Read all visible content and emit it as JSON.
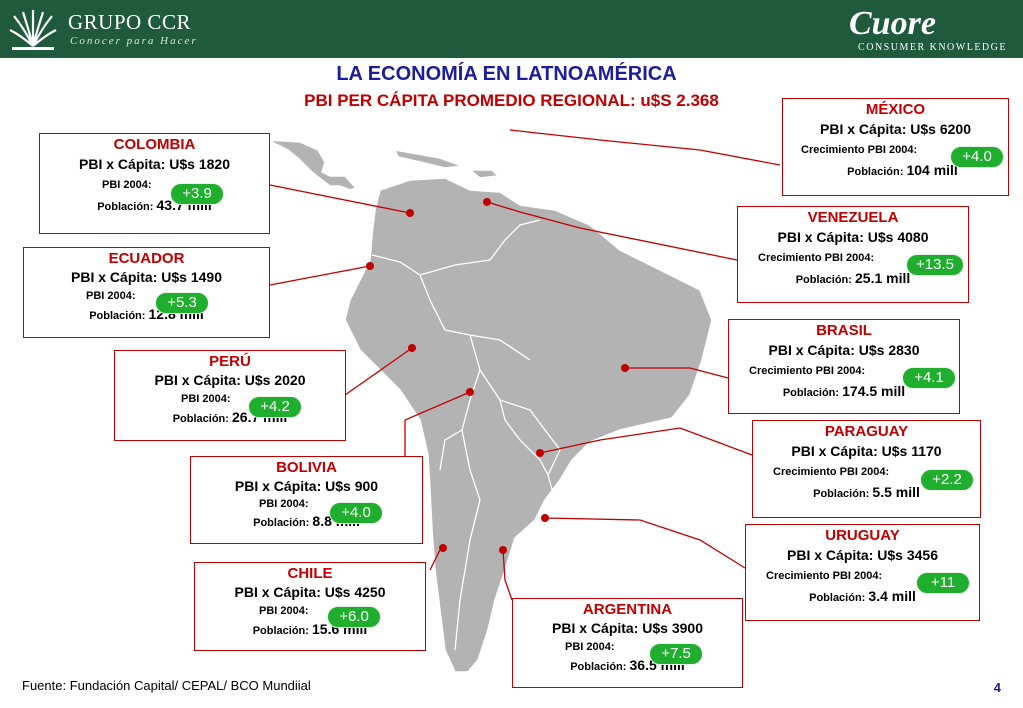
{
  "header": {
    "brand_name": "GRUPO CCR",
    "brand_tagline": "Conocer para Hacer",
    "partner_name": "Cuore",
    "partner_tagline": "CONSUMER KNOWLEDGE",
    "bg_color": "#1f5a3c"
  },
  "title": "LA ECONOMÍA EN LATNOAMÉRICA",
  "subtitle": "PBI PER CÁPITA PROMEDIO REGIONAL: u$S 2.368",
  "countries": [
    {
      "id": "mexico",
      "name": "MÉXICO",
      "gdp": "PBI x Cápita: U$s 6200",
      "growth_label": "Crecimiento PBI 2004:",
      "growth": "+4.0",
      "pop_label": "Población:",
      "pop": "104 mill"
    },
    {
      "id": "colombia",
      "name": "COLOMBIA",
      "gdp": "PBI x Cápita: U$s 1820",
      "growth_label": "PBI 2004:",
      "growth": "+3.9",
      "pop_label": "Población:",
      "pop": "43.7 mill"
    },
    {
      "id": "venezuela",
      "name": "VENEZUELA",
      "gdp": "PBI x Cápita: U$s 4080",
      "growth_label": "Crecimiento PBI 2004:",
      "growth": "+13.5",
      "pop_label": "Población:",
      "pop": "25.1 mill"
    },
    {
      "id": "ecuador",
      "name": "ECUADOR",
      "gdp": "PBI x Cápita: U$s 1490",
      "growth_label": "PBI 2004:",
      "growth": "+5.3",
      "pop_label": "Población:",
      "pop": "12.8 mill"
    },
    {
      "id": "brasil",
      "name": "BRASIL",
      "gdp": "PBI x Cápita: U$s 2830",
      "growth_label": "Crecimiento PBI 2004:",
      "growth": "+4.1",
      "pop_label": "Población:",
      "pop": "174.5 mill"
    },
    {
      "id": "peru",
      "name": "PERÚ",
      "gdp": "PBI x Cápita: U$s 2020",
      "growth_label": "PBI 2004:",
      "growth": "+4.2",
      "pop_label": "Población:",
      "pop": "26.7 mill"
    },
    {
      "id": "paraguay",
      "name": "PARAGUAY",
      "gdp": "PBI x Cápita: U$s 1170",
      "growth_label": "Crecimiento PBI 2004:",
      "growth": "+2.2",
      "pop_label": "Población:",
      "pop": "5.5 mill"
    },
    {
      "id": "bolivia",
      "name": "BOLIVIA",
      "gdp": "PBI x Cápita: U$s 900",
      "growth_label": "PBI 2004:",
      "growth": "+4.0",
      "pop_label": "Población:",
      "pop": "8.8 mill"
    },
    {
      "id": "uruguay",
      "name": "URUGUAY",
      "gdp": "PBI x Cápita: U$s 3456",
      "growth_label": "Crecimiento PBI 2004:",
      "growth": "+11",
      "pop_label": "Población:",
      "pop": "3.4 mill"
    },
    {
      "id": "chile",
      "name": "CHILE",
      "gdp": "PBI x Cápita: U$s 4250",
      "growth_label": "PBI 2004:",
      "growth": "+6.0",
      "pop_label": "Población:",
      "pop": "15.6 mill"
    },
    {
      "id": "argentina",
      "name": "ARGENTINA",
      "gdp": "PBI x Cápita: U$s 3900",
      "growth_label": "PBI 2004:",
      "growth": "+7.5",
      "pop_label": "Población:",
      "pop": "36.5 mill"
    }
  ],
  "colors": {
    "accent_red": "#c00000",
    "title_blue": "#1d1d9e",
    "growth_green": "#1fae2e",
    "map_gray": "#b3b3b3"
  },
  "footer": {
    "source": "Fuente: Fundación Capital/ CEPAL/ BCO Mundiial",
    "page": "4"
  }
}
